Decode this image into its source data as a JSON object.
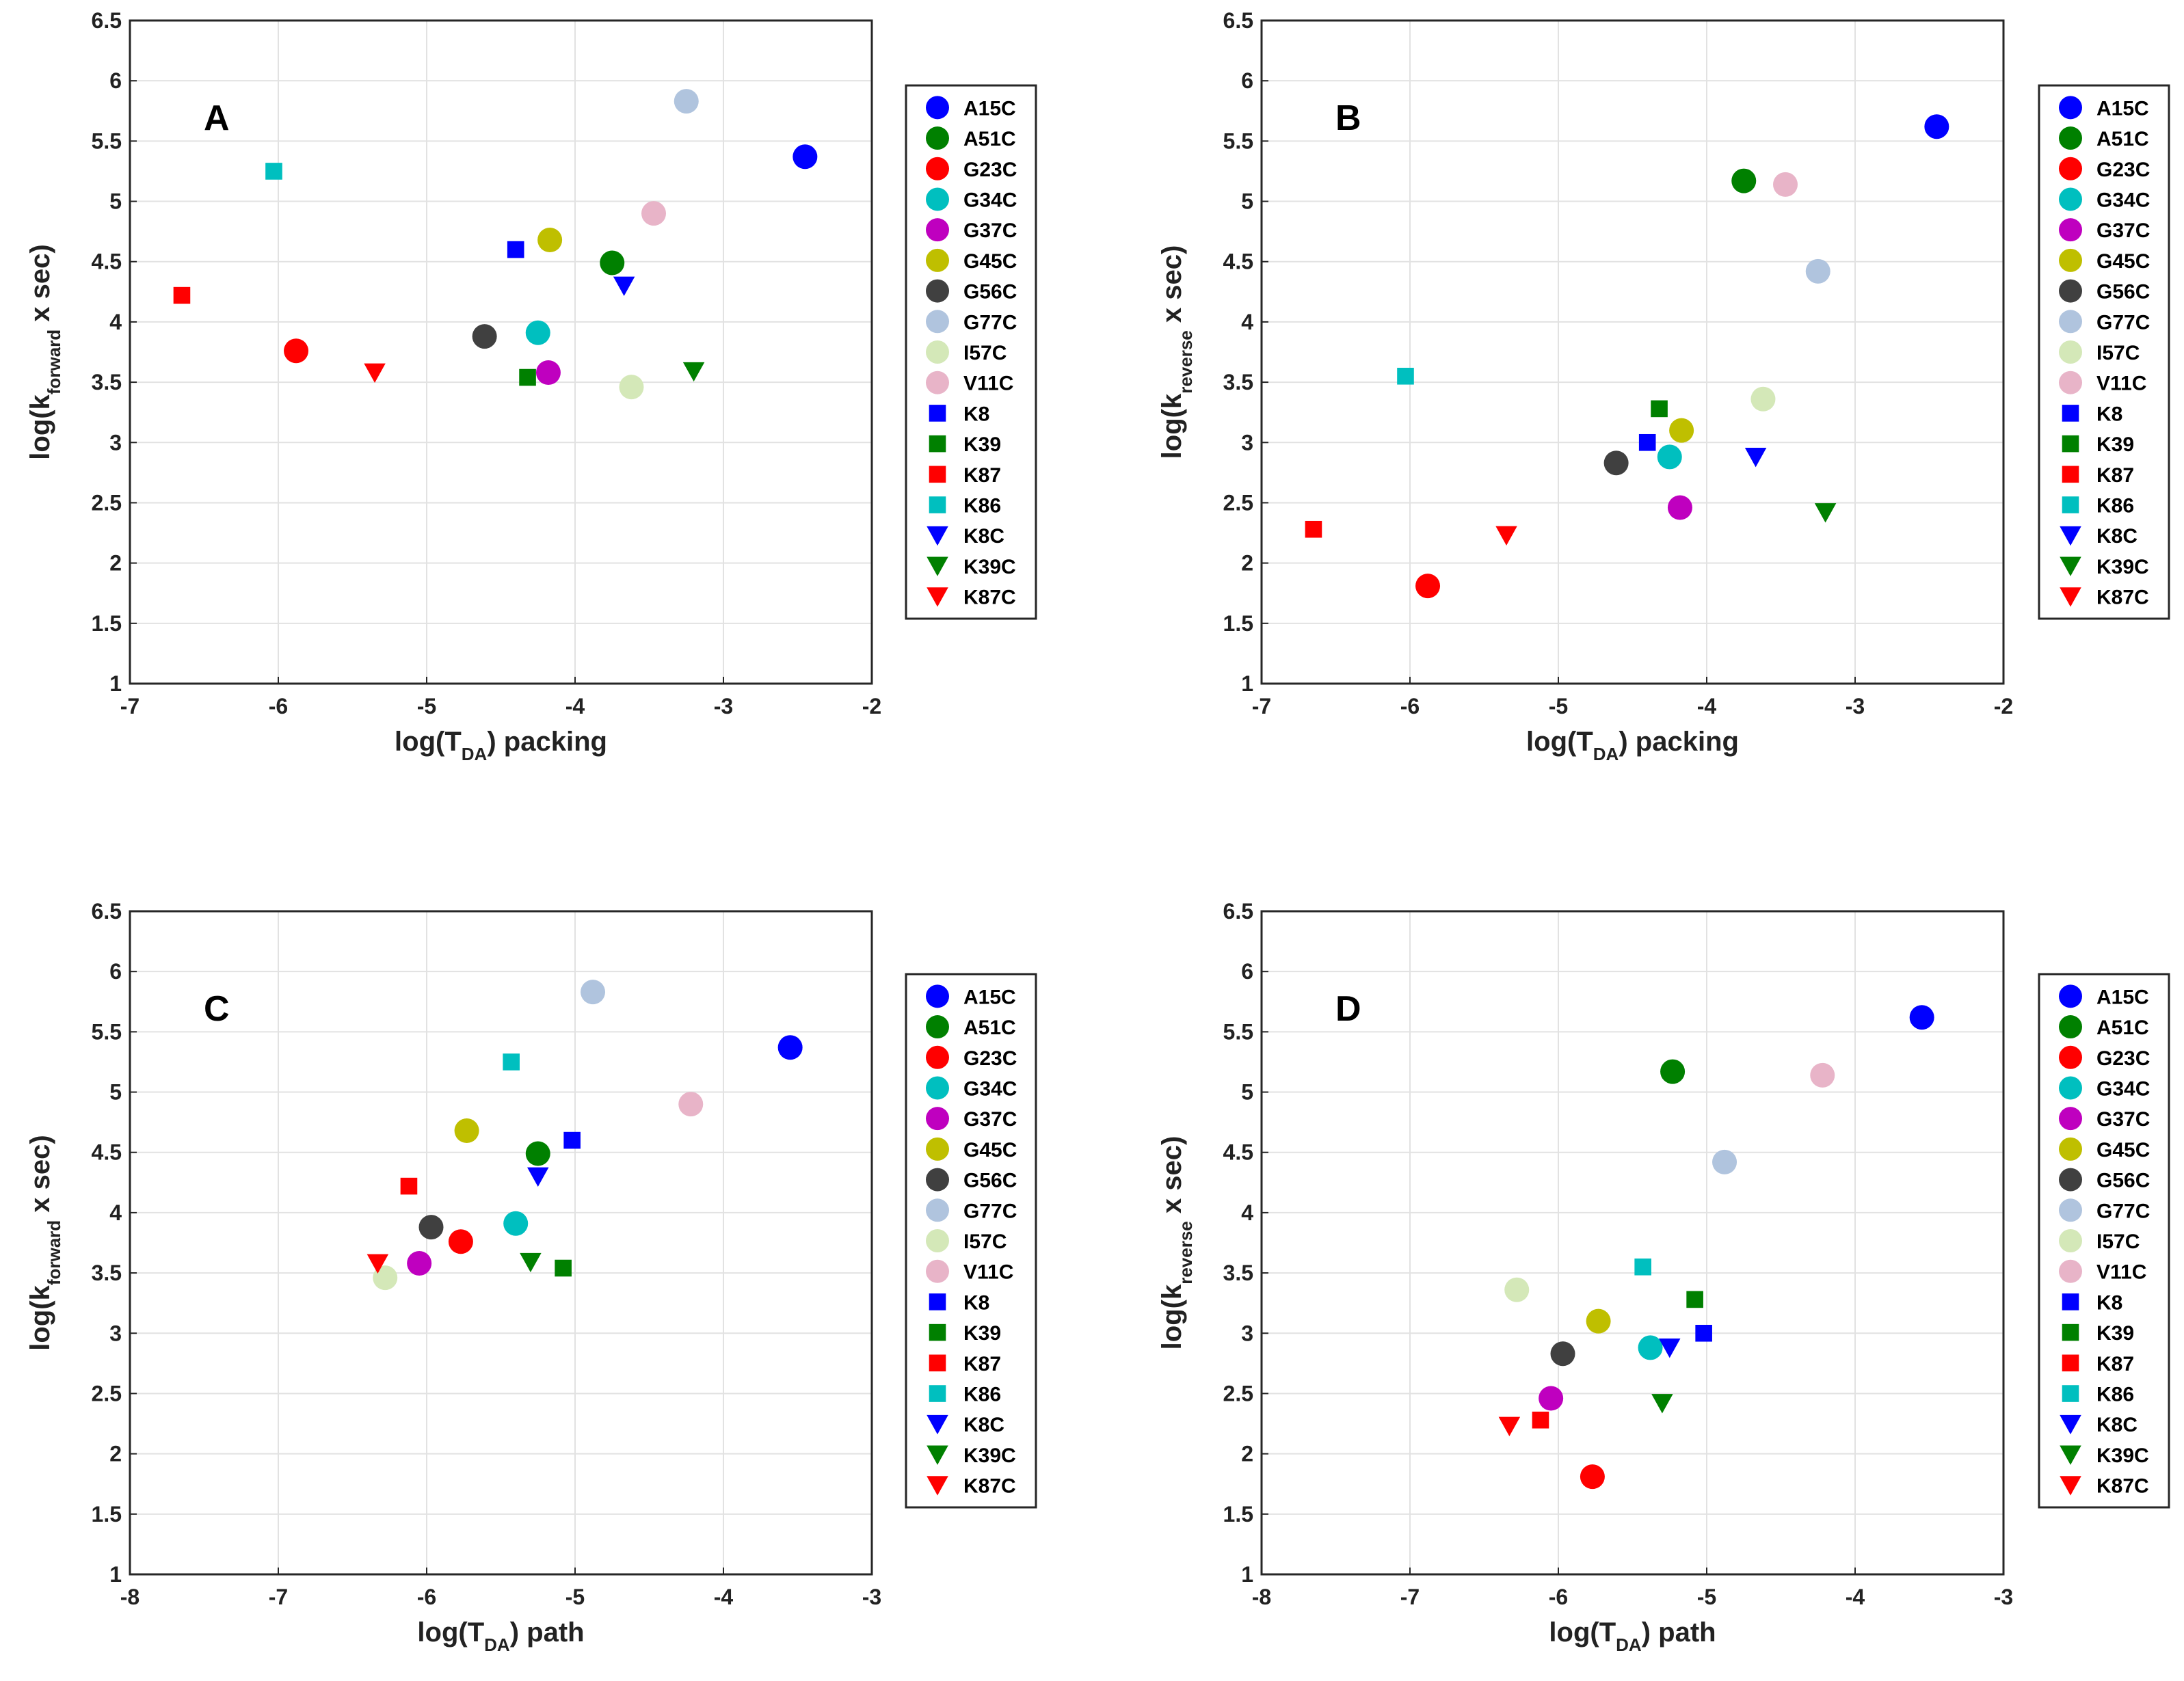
{
  "chart_data": [
    {
      "type": "scatter",
      "letter": "A",
      "xlim": [
        -7,
        -2
      ],
      "ylim": [
        1,
        6.5
      ],
      "xticks": [
        -7,
        -6,
        -5,
        -4,
        -3,
        -2
      ],
      "yticks": [
        1,
        1.5,
        2,
        2.5,
        3,
        3.5,
        4,
        4.5,
        5,
        5.5,
        6,
        6.5
      ],
      "xlabel": {
        "pre": "log(T",
        "sub": "DA",
        "post": ") packing"
      },
      "ylabel": {
        "pre": "log(k",
        "sub": "forward",
        "post": " x sec)"
      },
      "grid": true,
      "legend": "right",
      "points": [
        {
          "name": "A15C",
          "x": -2.45,
          "y": 5.37
        },
        {
          "name": "A51C",
          "x": -3.75,
          "y": 4.49
        },
        {
          "name": "G23C",
          "x": -5.88,
          "y": 3.76
        },
        {
          "name": "G34C",
          "x": -4.25,
          "y": 3.91
        },
        {
          "name": "G37C",
          "x": -4.18,
          "y": 3.58
        },
        {
          "name": "G45C",
          "x": -4.17,
          "y": 4.68
        },
        {
          "name": "G56C",
          "x": -4.61,
          "y": 3.88
        },
        {
          "name": "G77C",
          "x": -3.25,
          "y": 5.83
        },
        {
          "name": "I57C",
          "x": -3.62,
          "y": 3.46
        },
        {
          "name": "V11C",
          "x": -3.47,
          "y": 4.9
        },
        {
          "name": "K8",
          "x": -4.4,
          "y": 4.6
        },
        {
          "name": "K39",
          "x": -4.32,
          "y": 3.54
        },
        {
          "name": "K87",
          "x": -6.65,
          "y": 4.22
        },
        {
          "name": "K86",
          "x": -6.03,
          "y": 5.25
        },
        {
          "name": "K8C",
          "x": -3.67,
          "y": 4.3
        },
        {
          "name": "K39C",
          "x": -3.2,
          "y": 3.59
        },
        {
          "name": "K87C",
          "x": -5.35,
          "y": 3.58
        }
      ]
    },
    {
      "type": "scatter",
      "letter": "B",
      "xlim": [
        -7,
        -2
      ],
      "ylim": [
        1,
        6.5
      ],
      "xticks": [
        -7,
        -6,
        -5,
        -4,
        -3,
        -2
      ],
      "yticks": [
        1,
        1.5,
        2,
        2.5,
        3,
        3.5,
        4,
        4.5,
        5,
        5.5,
        6,
        6.5
      ],
      "xlabel": {
        "pre": "log(T",
        "sub": "DA",
        "post": ") packing"
      },
      "ylabel": {
        "pre": "log(k",
        "sub": "reverse",
        "post": " x sec)"
      },
      "grid": true,
      "legend": "right",
      "points": [
        {
          "name": "A15C",
          "x": -2.45,
          "y": 5.62
        },
        {
          "name": "A51C",
          "x": -3.75,
          "y": 5.17
        },
        {
          "name": "G23C",
          "x": -5.88,
          "y": 1.81
        },
        {
          "name": "G34C",
          "x": -4.25,
          "y": 2.88
        },
        {
          "name": "G37C",
          "x": -4.18,
          "y": 2.46
        },
        {
          "name": "G45C",
          "x": -4.17,
          "y": 3.1
        },
        {
          "name": "G56C",
          "x": -4.61,
          "y": 2.83
        },
        {
          "name": "G77C",
          "x": -3.25,
          "y": 4.42
        },
        {
          "name": "I57C",
          "x": -3.62,
          "y": 3.36
        },
        {
          "name": "V11C",
          "x": -3.47,
          "y": 5.14
        },
        {
          "name": "K8",
          "x": -4.4,
          "y": 3.0
        },
        {
          "name": "K39",
          "x": -4.32,
          "y": 3.28
        },
        {
          "name": "K87",
          "x": -6.65,
          "y": 2.28
        },
        {
          "name": "K86",
          "x": -6.03,
          "y": 3.55
        },
        {
          "name": "K8C",
          "x": -3.67,
          "y": 2.88
        },
        {
          "name": "K39C",
          "x": -3.2,
          "y": 2.42
        },
        {
          "name": "K87C",
          "x": -5.35,
          "y": 2.23
        }
      ]
    },
    {
      "type": "scatter",
      "letter": "C",
      "xlim": [
        -8,
        -3
      ],
      "ylim": [
        1,
        6.5
      ],
      "xticks": [
        -8,
        -7,
        -6,
        -5,
        -4,
        -3
      ],
      "yticks": [
        1,
        1.5,
        2,
        2.5,
        3,
        3.5,
        4,
        4.5,
        5,
        5.5,
        6,
        6.5
      ],
      "xlabel": {
        "pre": "log(T",
        "sub": "DA",
        "post": ") path"
      },
      "ylabel": {
        "pre": "log(k",
        "sub": "forward",
        "post": " x sec)"
      },
      "grid": true,
      "legend": "right",
      "points": [
        {
          "name": "A15C",
          "x": -3.55,
          "y": 5.37
        },
        {
          "name": "A51C",
          "x": -5.25,
          "y": 4.49
        },
        {
          "name": "G23C",
          "x": -5.77,
          "y": 3.76
        },
        {
          "name": "G34C",
          "x": -5.4,
          "y": 3.91
        },
        {
          "name": "G37C",
          "x": -6.05,
          "y": 3.58
        },
        {
          "name": "G45C",
          "x": -5.73,
          "y": 4.68
        },
        {
          "name": "G56C",
          "x": -5.97,
          "y": 3.88
        },
        {
          "name": "G77C",
          "x": -4.88,
          "y": 5.83
        },
        {
          "name": "I57C",
          "x": -6.28,
          "y": 3.46
        },
        {
          "name": "V11C",
          "x": -4.22,
          "y": 4.9
        },
        {
          "name": "K8",
          "x": -5.02,
          "y": 4.6
        },
        {
          "name": "K39",
          "x": -5.08,
          "y": 3.54
        },
        {
          "name": "K87",
          "x": -6.12,
          "y": 4.22
        },
        {
          "name": "K86",
          "x": -5.43,
          "y": 5.25
        },
        {
          "name": "K8C",
          "x": -5.25,
          "y": 4.3
        },
        {
          "name": "K39C",
          "x": -5.3,
          "y": 3.59
        },
        {
          "name": "K87C",
          "x": -6.33,
          "y": 3.58
        }
      ]
    },
    {
      "type": "scatter",
      "letter": "D",
      "xlim": [
        -8,
        -3
      ],
      "ylim": [
        1,
        6.5
      ],
      "xticks": [
        -8,
        -7,
        -6,
        -5,
        -4,
        -3
      ],
      "yticks": [
        1,
        1.5,
        2,
        2.5,
        3,
        3.5,
        4,
        4.5,
        5,
        5.5,
        6,
        6.5
      ],
      "xlabel": {
        "pre": "log(T",
        "sub": "DA",
        "post": ") path"
      },
      "ylabel": {
        "pre": "log(k",
        "sub": "reverse",
        "post": " x sec)"
      },
      "grid": true,
      "legend": "right",
      "points": [
        {
          "name": "A15C",
          "x": -3.55,
          "y": 5.62
        },
        {
          "name": "A51C",
          "x": -5.23,
          "y": 5.17
        },
        {
          "name": "G23C",
          "x": -5.77,
          "y": 1.81
        },
        {
          "name": "G34C",
          "x": -5.38,
          "y": 2.88
        },
        {
          "name": "G37C",
          "x": -6.05,
          "y": 2.46
        },
        {
          "name": "G45C",
          "x": -5.73,
          "y": 3.1
        },
        {
          "name": "G56C",
          "x": -5.97,
          "y": 2.83
        },
        {
          "name": "G77C",
          "x": -4.88,
          "y": 4.42
        },
        {
          "name": "I57C",
          "x": -6.28,
          "y": 3.36
        },
        {
          "name": "V11C",
          "x": -4.22,
          "y": 5.14
        },
        {
          "name": "K8",
          "x": -5.02,
          "y": 3.0
        },
        {
          "name": "K39",
          "x": -5.08,
          "y": 3.28
        },
        {
          "name": "K87",
          "x": -6.12,
          "y": 2.28
        },
        {
          "name": "K86",
          "x": -5.43,
          "y": 3.55
        },
        {
          "name": "K8C",
          "x": -5.25,
          "y": 2.88
        },
        {
          "name": "K39C",
          "x": -5.3,
          "y": 2.42
        },
        {
          "name": "K87C",
          "x": -6.33,
          "y": 2.23
        }
      ]
    }
  ],
  "legend": [
    {
      "name": "A15C",
      "marker": "circle",
      "color": "#0000ff"
    },
    {
      "name": "A51C",
      "marker": "circle",
      "color": "#008000"
    },
    {
      "name": "G23C",
      "marker": "circle",
      "color": "#ff0000"
    },
    {
      "name": "G34C",
      "marker": "circle",
      "color": "#00bfbf"
    },
    {
      "name": "G37C",
      "marker": "circle",
      "color": "#bf00bf"
    },
    {
      "name": "G45C",
      "marker": "circle",
      "color": "#bfbf00"
    },
    {
      "name": "G56C",
      "marker": "circle",
      "color": "#404040"
    },
    {
      "name": "G77C",
      "marker": "circle",
      "color": "#b0c4de"
    },
    {
      "name": "I57C",
      "marker": "circle",
      "color": "#d4e8b8"
    },
    {
      "name": "V11C",
      "marker": "circle",
      "color": "#e8b4c8"
    },
    {
      "name": "K8",
      "marker": "square",
      "color": "#0000ff"
    },
    {
      "name": "K39",
      "marker": "square",
      "color": "#008000"
    },
    {
      "name": "K87",
      "marker": "square",
      "color": "#ff0000"
    },
    {
      "name": "K86",
      "marker": "square",
      "color": "#00bfbf"
    },
    {
      "name": "K8C",
      "marker": "triangle-down",
      "color": "#0000ff"
    },
    {
      "name": "K39C",
      "marker": "triangle-down",
      "color": "#008000"
    },
    {
      "name": "K87C",
      "marker": "triangle-down",
      "color": "#ff0000"
    }
  ]
}
